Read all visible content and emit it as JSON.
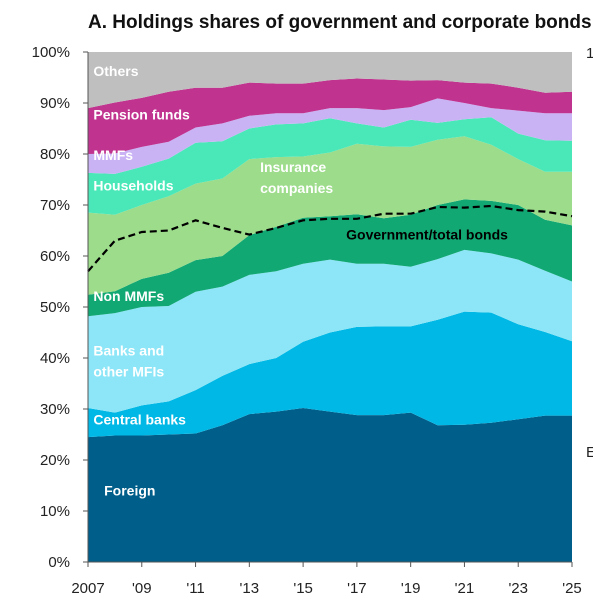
{
  "chart_data": {
    "type": "area",
    "title": "A. Holdings shares of government and corporate bonds",
    "xlabel": "",
    "ylabel": "",
    "x": [
      2007,
      2008,
      2009,
      2010,
      2011,
      2012,
      2013,
      2014,
      2015,
      2016,
      2017,
      2018,
      2019,
      2020,
      2021,
      2022,
      2023,
      2024,
      2025
    ],
    "x_tick_labels": [
      "2007",
      "'09",
      "'11",
      "'13",
      "'15",
      "'17",
      "'19",
      "'21",
      "'23",
      "'25"
    ],
    "x_tick_values": [
      2007,
      2009,
      2011,
      2013,
      2015,
      2017,
      2019,
      2021,
      2023,
      2025
    ],
    "y_tick_labels": [
      "0%",
      "10%",
      "20%",
      "30%",
      "40%",
      "50%",
      "60%",
      "70%",
      "80%",
      "90%",
      "100%"
    ],
    "ylim": [
      0,
      100
    ],
    "y_unit": "%",
    "stacked": true,
    "series": [
      {
        "name": "Foreign",
        "label": "Foreign",
        "color": "#005f8a",
        "label_color": "#ffffff",
        "values": [
          24.5,
          24.8,
          24.8,
          25.0,
          25.2,
          26.8,
          29.0,
          29.5,
          30.2,
          29.5,
          28.8,
          28.8,
          29.3,
          26.8,
          26.9,
          27.3,
          28.0,
          28.7,
          28.7
        ]
      },
      {
        "name": "Central banks",
        "label": "Central banks",
        "color": "#00b8e6",
        "label_color": "#ffffff",
        "values": [
          5.7,
          4.5,
          5.9,
          6.5,
          8.5,
          9.7,
          9.8,
          10.5,
          13.0,
          15.5,
          17.3,
          17.4,
          16.9,
          20.7,
          22.2,
          21.6,
          18.6,
          16.4,
          14.6
        ]
      },
      {
        "name": "Banks and other MFIs",
        "label": "Banks and other MFIs",
        "color": "#8de6f7",
        "label_color": "#ffffff",
        "values": [
          18.0,
          19.5,
          19.3,
          18.7,
          19.3,
          17.5,
          17.5,
          17.0,
          15.3,
          14.3,
          12.4,
          12.3,
          11.7,
          11.9,
          12.1,
          11.6,
          12.7,
          12.0,
          11.7
        ]
      },
      {
        "name": "Non MMFs",
        "label": "Non MMFs",
        "color": "#12a874",
        "label_color": "#ffffff",
        "values": [
          4.2,
          4.3,
          5.5,
          6.5,
          6.2,
          6.0,
          7.8,
          8.7,
          9.0,
          8.5,
          9.7,
          8.9,
          10.2,
          10.6,
          9.9,
          10.3,
          10.7,
          10.0,
          11.0
        ]
      },
      {
        "name": "Insurance companies",
        "label": "Insurance companies",
        "color": "#9cdc8a",
        "label_color": "#ffffff",
        "values": [
          16.1,
          15.0,
          14.5,
          15.0,
          15.0,
          15.2,
          14.9,
          13.7,
          12.0,
          12.5,
          13.8,
          14.1,
          13.3,
          12.8,
          12.4,
          11.0,
          9.0,
          9.4,
          10.5
        ]
      },
      {
        "name": "Households",
        "label": "Households",
        "color": "#4ae8b8",
        "label_color": "#ffffff",
        "values": [
          7.8,
          8.0,
          7.5,
          7.4,
          8.0,
          7.3,
          6.0,
          6.4,
          6.5,
          6.7,
          4.0,
          3.7,
          5.3,
          3.3,
          3.3,
          5.4,
          5.0,
          6.2,
          6.1
        ]
      },
      {
        "name": "MMFs",
        "label": "MMFs",
        "color": "#c9b3f5",
        "label_color": "#ffffff",
        "values": [
          3.7,
          4.0,
          3.9,
          3.3,
          3.0,
          3.5,
          2.5,
          2.2,
          2.0,
          2.0,
          3.0,
          3.4,
          2.5,
          4.8,
          3.2,
          1.8,
          4.5,
          5.3,
          5.4
        ]
      },
      {
        "name": "Pension funds",
        "label": "Pension funds",
        "color": "#c0338f",
        "label_color": "#ffffff",
        "values": [
          9.0,
          10.0,
          9.6,
          9.8,
          7.8,
          7.0,
          6.5,
          5.8,
          5.8,
          5.5,
          5.8,
          6.0,
          5.2,
          3.6,
          4.0,
          4.8,
          4.5,
          4.0,
          4.2
        ]
      },
      {
        "name": "Others",
        "label": "Others",
        "color": "#bfbfbf",
        "label_color": "#ffffff",
        "values": [
          11.0,
          9.9,
          9.0,
          7.8,
          7.0,
          7.0,
          6.0,
          6.2,
          6.2,
          5.5,
          5.2,
          5.4,
          5.6,
          5.5,
          6.0,
          6.2,
          7.0,
          8.0,
          7.8
        ]
      }
    ],
    "line": {
      "name": "Government/total bonds",
      "label": "Government/total bonds",
      "style": "dashed",
      "color": "#000000",
      "values": [
        57,
        63,
        64.7,
        65,
        67,
        65.5,
        64.2,
        65.5,
        67,
        67.3,
        67.3,
        68.3,
        68.3,
        69.6,
        69.5,
        69.8,
        69,
        68.7,
        67.8
      ]
    },
    "right_edge_text": {
      "top": "1",
      "bottom": "E"
    },
    "grid": false,
    "legend": "inline-labels"
  }
}
